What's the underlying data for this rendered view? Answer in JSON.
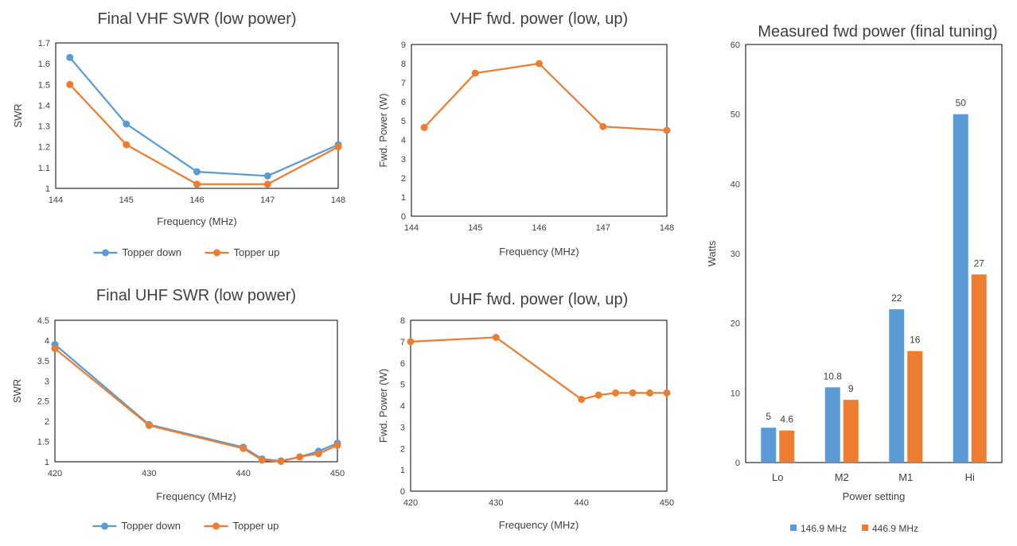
{
  "colors": {
    "blue": "#5b9bd5",
    "orange": "#ed7d31",
    "grid": "#d9d9d9",
    "axis": "#000000",
    "text": "#404040"
  },
  "chart_data": [
    {
      "id": "vhf_swr",
      "type": "line",
      "title": "Final VHF SWR (low power)",
      "xlabel": "Frequency (MHz)",
      "ylabel": "SWR",
      "xlim": [
        144,
        148
      ],
      "ylim": [
        1,
        1.7
      ],
      "xticks": [
        144,
        145,
        146,
        147,
        148
      ],
      "yticks": [
        1,
        1.1,
        1.2,
        1.3,
        1.4,
        1.5,
        1.6,
        1.7
      ],
      "grid": false,
      "legend": "bottom",
      "series": [
        {
          "name": "Topper down",
          "color": "#5b9bd5",
          "x": [
            144.2,
            145,
            146,
            147,
            148
          ],
          "y": [
            1.63,
            1.31,
            1.08,
            1.06,
            1.21
          ]
        },
        {
          "name": "Topper up",
          "color": "#ed7d31",
          "x": [
            144.2,
            145,
            146,
            147,
            148
          ],
          "y": [
            1.5,
            1.21,
            1.02,
            1.02,
            1.2
          ]
        }
      ]
    },
    {
      "id": "vhf_pwr",
      "type": "line",
      "title": "VHF fwd. power (low, up)",
      "xlabel": "Frequency (MHz)",
      "ylabel": "Fwd. Power (W)",
      "xlim": [
        144,
        148
      ],
      "ylim": [
        0,
        9
      ],
      "xticks": [
        144,
        145,
        146,
        147,
        148
      ],
      "yticks": [
        0,
        1,
        2,
        3,
        4,
        5,
        6,
        7,
        8,
        9
      ],
      "grid": false,
      "series": [
        {
          "color": "#ed7d31",
          "x": [
            144.2,
            145,
            146,
            147,
            148
          ],
          "y": [
            4.65,
            7.5,
            8.0,
            4.7,
            4.5
          ]
        }
      ]
    },
    {
      "id": "uhf_swr",
      "type": "line",
      "title": "Final UHF SWR (low power)",
      "xlabel": "Frequency (MHz)",
      "ylabel": "SWR",
      "xlim": [
        420,
        450
      ],
      "ylim": [
        1,
        4.5
      ],
      "xticks": [
        420,
        430,
        440,
        450
      ],
      "yticks": [
        1,
        1.5,
        2,
        2.5,
        3,
        3.5,
        4,
        4.5
      ],
      "grid": false,
      "legend": "bottom",
      "series": [
        {
          "name": "Topper down",
          "color": "#5b9bd5",
          "x": [
            420,
            430,
            440,
            442,
            444,
            446,
            448,
            450
          ],
          "y": [
            3.9,
            1.92,
            1.36,
            1.07,
            1.02,
            1.12,
            1.26,
            1.46
          ]
        },
        {
          "name": "Topper up",
          "color": "#ed7d31",
          "x": [
            420,
            430,
            440,
            442,
            444,
            446,
            448,
            450
          ],
          "y": [
            3.8,
            1.9,
            1.33,
            1.04,
            1.01,
            1.12,
            1.2,
            1.41
          ]
        }
      ]
    },
    {
      "id": "uhf_pwr",
      "type": "line",
      "title": "UHF fwd. power (low, up)",
      "xlabel": "Frequency (MHz)",
      "ylabel": "Fwd. Power (W)",
      "xlim": [
        420,
        450
      ],
      "ylim": [
        0,
        8
      ],
      "xticks": [
        420,
        430,
        440,
        450
      ],
      "yticks": [
        0,
        1,
        2,
        3,
        4,
        5,
        6,
        7,
        8
      ],
      "grid": false,
      "series": [
        {
          "color": "#ed7d31",
          "x": [
            420,
            430,
            440,
            442,
            444,
            446,
            448,
            450
          ],
          "y": [
            7.0,
            7.2,
            4.3,
            4.5,
            4.6,
            4.6,
            4.6,
            4.6
          ]
        }
      ]
    },
    {
      "id": "fwd_bar",
      "type": "bar",
      "title": "Measured fwd power (final tuning)",
      "xlabel": "Power setting",
      "ylabel": "Watts",
      "ylim": [
        0,
        60
      ],
      "yticks": [
        0,
        10,
        20,
        30,
        40,
        50,
        60
      ],
      "grid": false,
      "legend": "bottom",
      "categories": [
        "Lo",
        "M2",
        "M1",
        "Hi"
      ],
      "series": [
        {
          "name": "146.9 MHz",
          "color": "#5b9bd5",
          "values": [
            5,
            10.8,
            22,
            50
          ]
        },
        {
          "name": "446.9 MHz",
          "color": "#ed7d31",
          "values": [
            4.6,
            9,
            16,
            27
          ]
        }
      ]
    }
  ]
}
